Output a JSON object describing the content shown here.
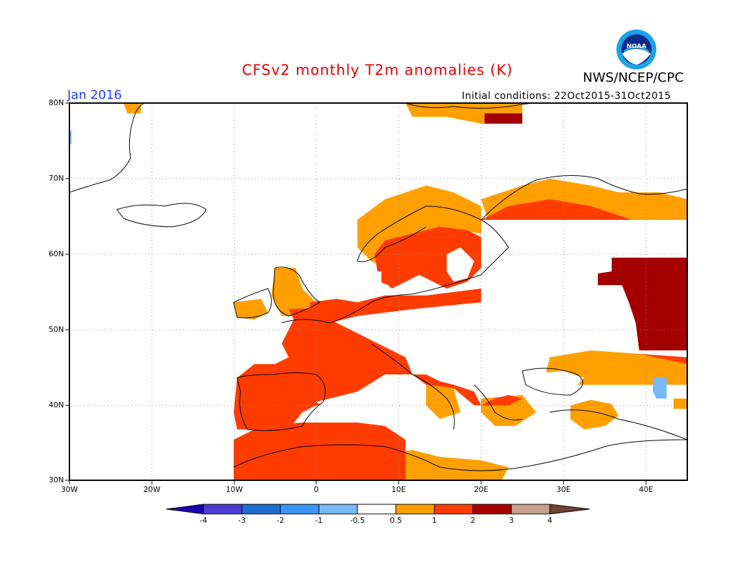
{
  "header": {
    "title": "CFSv2 monthly T2m anomalies (K)",
    "agency": "NWS/NCEP/CPC",
    "month": "Jan 2016",
    "initial_conditions": "Initial conditions: 22Oct2015-31Oct2015",
    "logo_text": "NOAA"
  },
  "map": {
    "lon_range": [
      -30,
      45
    ],
    "lat_range": [
      30,
      80
    ],
    "y_labels": [
      "80N",
      "70N",
      "60N",
      "50N",
      "40N",
      "30N"
    ],
    "x_labels": [
      "30W",
      "20W",
      "10W",
      "0",
      "10E",
      "20E",
      "30E",
      "40E"
    ],
    "colors": {
      "land_outline": "#000000",
      "anom_0_5_to_1": "#ffa000",
      "anom_1_to_2": "#ff3c00",
      "anom_2_to_3": "#a50000",
      "anom_neg_1_to_neg_0_5": "#78b9fa",
      "title_red": "#e60000",
      "month_blue": "#1e3cff"
    }
  },
  "colorbar": {
    "labels": [
      "-4",
      "-3",
      "-2",
      "-1",
      "-0.5",
      "0.5",
      "1",
      "2",
      "3",
      "4"
    ],
    "colors": [
      "#1e00b4",
      "#4b3cd2",
      "#1e6ed2",
      "#3c96f5",
      "#78b9fa",
      "#ffffff",
      "#ffa000",
      "#ff3c00",
      "#a50000",
      "#c8a08c",
      "#6e4632"
    ]
  }
}
